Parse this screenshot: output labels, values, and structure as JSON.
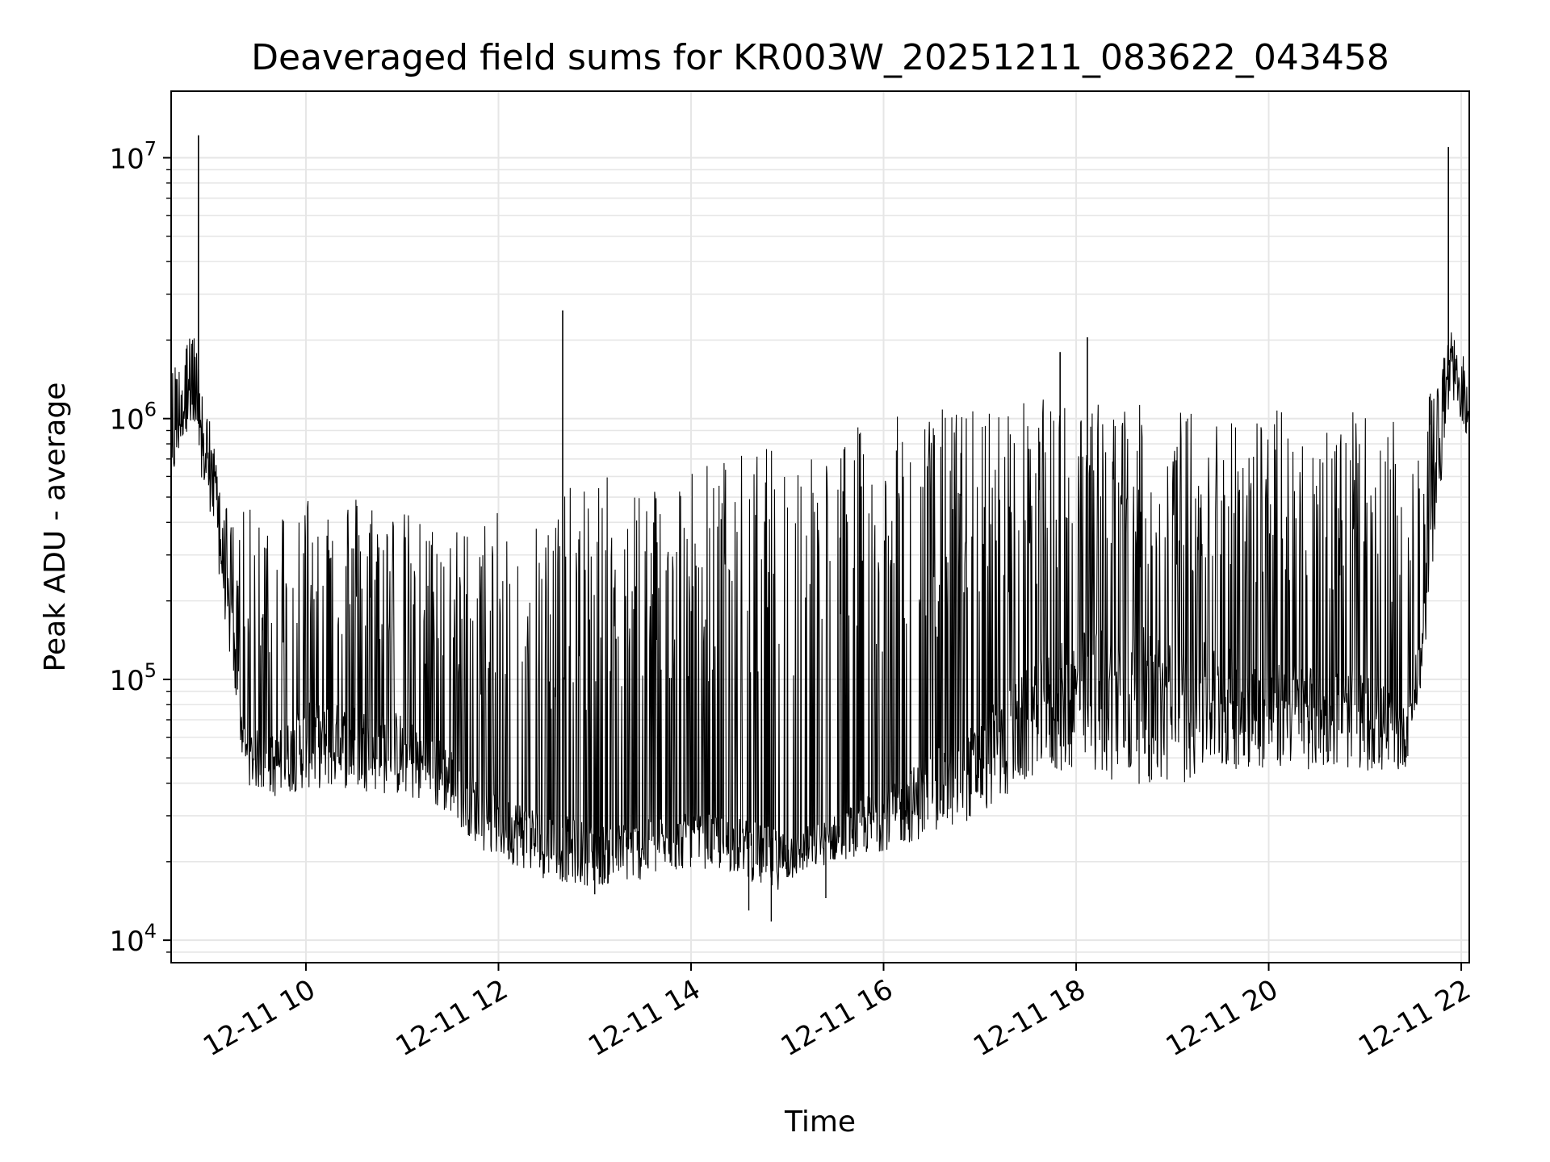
{
  "chart_data": {
    "type": "line",
    "title": "Deaveraged field sums for KR003W_20251211_083622_043458",
    "xlabel": "Time",
    "ylabel": "Peak ADU - average",
    "yscale": "log",
    "ylim": [
      8200,
      18000000
    ],
    "xlim": [
      "2025-12-11 08:36",
      "2025-12-11 22:05"
    ],
    "grid": true,
    "line_color": "#000000",
    "grid_color": "#e6e6e6",
    "x_ticks": [
      {
        "value": "2025-12-11 10:00",
        "label": "12-11 10"
      },
      {
        "value": "2025-12-11 12:00",
        "label": "12-11 12"
      },
      {
        "value": "2025-12-11 14:00",
        "label": "12-11 14"
      },
      {
        "value": "2025-12-11 16:00",
        "label": "12-11 16"
      },
      {
        "value": "2025-12-11 18:00",
        "label": "12-11 18"
      },
      {
        "value": "2025-12-11 20:00",
        "label": "12-11 20"
      },
      {
        "value": "2025-12-11 22:00",
        "label": "12-11 22"
      }
    ],
    "y_ticks": [
      {
        "value": 10000,
        "base": "10",
        "exp": "4"
      },
      {
        "value": 100000,
        "base": "10",
        "exp": "5"
      },
      {
        "value": 1000000,
        "base": "10",
        "exp": "6"
      },
      {
        "value": 10000000,
        "base": "10",
        "exp": "7"
      }
    ],
    "series": [
      {
        "envelope": {
          "time": [
            "08:36",
            "08:45",
            "08:50",
            "08:52",
            "09:00",
            "09:08",
            "09:15",
            "09:22",
            "09:40",
            "10:00",
            "10:30",
            "11:00",
            "11:30",
            "11:50",
            "12:30",
            "13:00",
            "13:30",
            "14:00",
            "14:30",
            "14:50",
            "15:10",
            "15:30",
            "16:00",
            "16:30",
            "17:00",
            "17:30",
            "18:00",
            "18:30",
            "19:00",
            "19:30",
            "20:00",
            "20:30",
            "21:00",
            "21:15",
            "21:25",
            "21:35",
            "21:45",
            "21:52",
            "22:00",
            "22:05"
          ],
          "low": [
            550000,
            900000,
            800000,
            700000,
            450000,
            200000,
            90000,
            40000,
            35000,
            38000,
            38000,
            35000,
            30000,
            22000,
            17000,
            16000,
            17000,
            19000,
            18000,
            15000,
            18000,
            20000,
            22000,
            25000,
            30000,
            40000,
            45000,
            40000,
            38000,
            45000,
            45000,
            45000,
            45000,
            42000,
            45000,
            90000,
            400000,
            1000000,
            1000000,
            800000
          ],
          "base": [
            700000,
            1500000,
            1200000,
            1000000,
            700000,
            350000,
            150000,
            60000,
            55000,
            70000,
            70000,
            65000,
            50000,
            35000,
            28000,
            25000,
            26000,
            28000,
            27000,
            24000,
            25000,
            28000,
            35000,
            45000,
            60000,
            90000,
            120000,
            130000,
            110000,
            110000,
            100000,
            95000,
            90000,
            80000,
            70000,
            140000,
            800000,
            1600000,
            1300000,
            1000000
          ],
          "high": [
            1500000,
            2500000,
            2300000,
            1800000,
            1000000,
            500000,
            400000,
            450000,
            500000,
            550000,
            550000,
            450000,
            380000,
            420000,
            500000,
            600000,
            650000,
            700000,
            750000,
            800000,
            850000,
            900000,
            1000000,
            1100000,
            1150000,
            1200000,
            1200000,
            1150000,
            1100000,
            1100000,
            1100000,
            1100000,
            1050000,
            1000000,
            900000,
            1000000,
            1500000,
            2200000,
            2000000,
            1200000
          ]
        },
        "spikes": [
          {
            "time": "08:53",
            "value": 12200000
          },
          {
            "time": "12:40",
            "value": 2600000
          },
          {
            "time": "17:50",
            "value": 1800000
          },
          {
            "time": "18:07",
            "value": 2050000
          },
          {
            "time": "21:52",
            "value": 11000000
          }
        ],
        "dips": [
          {
            "time": "14:50",
            "value": 11800
          },
          {
            "time": "14:36",
            "value": 13000
          },
          {
            "time": "15:24",
            "value": 14500
          },
          {
            "time": "13:00",
            "value": 15000
          }
        ]
      }
    ]
  }
}
